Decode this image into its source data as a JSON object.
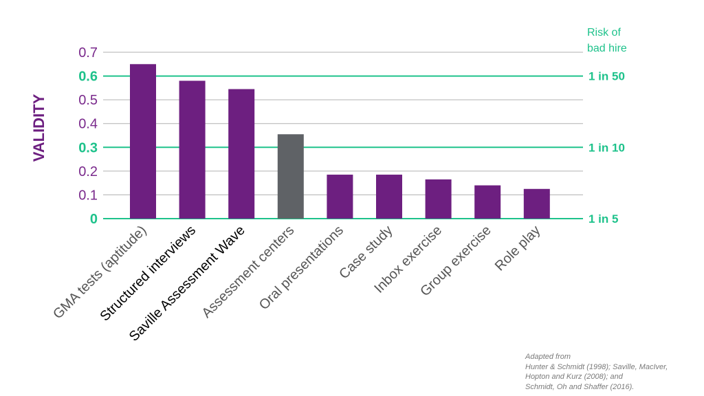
{
  "chart_data": {
    "type": "bar",
    "ylabel": "VALIDITY",
    "ylim": [
      0,
      0.7
    ],
    "yticks": [
      "0",
      "0.1",
      "0.2",
      "0.3",
      "0.4",
      "0.5",
      "0.6",
      "0.7"
    ],
    "highlight_ticks": [
      "0",
      "0.3",
      "0.6"
    ],
    "categories": [
      "GMA tests (aptitude)",
      "Structured interviews",
      "Saville Assessment Wave",
      "Assessment centers",
      "Oral presentations",
      "Case study",
      "Inbox exercise",
      "Group exercise",
      "Role play"
    ],
    "values": [
      0.65,
      0.58,
      0.545,
      0.355,
      0.185,
      0.185,
      0.165,
      0.14,
      0.125
    ],
    "bar_colors": [
      "#6d1f80",
      "#6d1f80",
      "#6d1f80",
      "#5f6266",
      "#6d1f80",
      "#6d1f80",
      "#6d1f80",
      "#6d1f80",
      "#6d1f80"
    ],
    "highlighted_categories": [
      "Structured interviews",
      "Saville Assessment Wave"
    ],
    "secondary_axis": {
      "title_lines": [
        "Risk of",
        "bad hire"
      ],
      "labels": [
        {
          "value": 0.6,
          "text": "1 in 50"
        },
        {
          "value": 0.3,
          "text": "1 in 10"
        },
        {
          "value": 0,
          "text": "1 in 5"
        }
      ]
    },
    "grid": true,
    "colors": {
      "bar": "#6d1f80",
      "bar_alt": "#5f6266",
      "accent": "#1ec28b",
      "axis_text": "#7a2a8c",
      "grid": "#b0b0b0",
      "label_dark": "#000000",
      "label_light": "#555555"
    }
  },
  "citation": {
    "lines": [
      "Adapted from",
      "Hunter & Schmidt (1998); Saville, MacIver,",
      "Hopton and Kurz (2008); and",
      "Schmidt, Oh and Shaffer (2016)."
    ]
  }
}
